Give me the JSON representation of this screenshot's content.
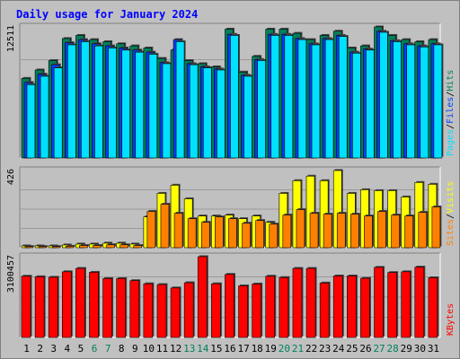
{
  "title": "Daily usage for January 2024",
  "colors": {
    "background": "#c0c0c0",
    "title": "#0000ff",
    "hits": "#00805c",
    "files": "#0040ff",
    "pages": "#00e0ff",
    "visits": "#ffff00",
    "sites": "#ff8000",
    "kbytes": "#ff0000",
    "weekend_label": "#00805c",
    "weekday_label": "#000000"
  },
  "chart_data": {
    "type": "bar",
    "title": "Daily usage for January 2024",
    "categories": [
      "1",
      "2",
      "3",
      "4",
      "5",
      "6",
      "7",
      "8",
      "9",
      "10",
      "11",
      "12",
      "13",
      "14",
      "15",
      "16",
      "17",
      "18",
      "19",
      "20",
      "21",
      "22",
      "23",
      "24",
      "25",
      "26",
      "27",
      "28",
      "29",
      "30",
      "31"
    ],
    "weekend_days": [
      "6",
      "7",
      "13",
      "14",
      "20",
      "21",
      "27",
      "28"
    ],
    "panels": [
      {
        "id": "hits-files-pages",
        "ymax_label": "12511",
        "ymax": 12511,
        "legend": [
          {
            "text": "Pages",
            "color": "#00e0ff"
          },
          {
            "text": "/",
            "color": "#000000"
          },
          {
            "text": "Files",
            "color": "#0040ff"
          },
          {
            "text": "/",
            "color": "#000000"
          },
          {
            "text": "Hits",
            "color": "#00805c"
          }
        ],
        "series": [
          {
            "name": "Hits",
            "color": "#00805c",
            "values": [
              7600,
              8400,
              9300,
              11400,
              11700,
              11300,
              11100,
              10900,
              10700,
              10500,
              9500,
              10300,
              9300,
              9000,
              8700,
              12300,
              8200,
              9700,
              12300,
              12300,
              11900,
              11300,
              11700,
              12100,
              10500,
              10700,
              12511,
              11700,
              11300,
              11100,
              11300
            ]
          },
          {
            "name": "Files",
            "color": "#0040ff",
            "values": [
              7200,
              8000,
              8900,
              11000,
              11300,
              10900,
              10700,
              10500,
              10300,
              10100,
              9100,
              11300,
              9000,
              8700,
              8500,
              11800,
              7900,
              9400,
              11800,
              11800,
              11400,
              10900,
              11400,
              11700,
              10100,
              10400,
              12100,
              11200,
              10900,
              10700,
              10900
            ]
          },
          {
            "name": "Pages",
            "color": "#00e0ff",
            "values": [
              7000,
              7800,
              8600,
              10800,
              11100,
              10700,
              10500,
              10300,
              10100,
              9900,
              9000,
              11100,
              8900,
              8600,
              8400,
              11700,
              7800,
              9300,
              11700,
              11700,
              11300,
              10800,
              11300,
              11600,
              10000,
              10300,
              12000,
              11100,
              10800,
              10600,
              10800
            ]
          }
        ]
      },
      {
        "id": "visits-sites",
        "ymax_label": "426",
        "ymax": 426,
        "legend": [
          {
            "text": "Sites",
            "color": "#ff8000"
          },
          {
            "text": "/",
            "color": "#000000"
          },
          {
            "text": "Visits",
            "color": "#ffff00"
          }
        ],
        "series": [
          {
            "name": "Visits",
            "color": "#ffff00",
            "values": [
              10,
              10,
              10,
              15,
              20,
              20,
              25,
              25,
              20,
              170,
              300,
              345,
              270,
              175,
              175,
              180,
              160,
              175,
              140,
              300,
              370,
              395,
              370,
              426,
              300,
              320,
              315,
              315,
              280,
              360,
              350
            ]
          },
          {
            "name": "Sites",
            "color": "#ff8000",
            "values": [
              6,
              6,
              6,
              8,
              12,
              12,
              16,
              16,
              12,
              200,
              240,
              190,
              160,
              140,
              170,
              160,
              135,
              150,
              130,
              180,
              210,
              190,
              185,
              190,
              185,
              175,
              200,
              180,
              175,
              195,
              225
            ]
          }
        ]
      },
      {
        "id": "kbytes",
        "ymax_label": "3100457",
        "ymax": 3100457,
        "legend": [
          {
            "text": "KBytes",
            "color": "#ff0000"
          }
        ],
        "series": [
          {
            "name": "KBytes",
            "color": "#ff0000",
            "values": [
              2350000,
              2330000,
              2310000,
              2520000,
              2650000,
              2500000,
              2260000,
              2260000,
              2180000,
              2060000,
              2030000,
              1900000,
              2100000,
              3100457,
              2060000,
              2420000,
              1980000,
              2050000,
              2350000,
              2300000,
              2650000,
              2650000,
              2090000,
              2360000,
              2360000,
              2270000,
              2690000,
              2490000,
              2520000,
              2700000,
              2290000
            ]
          }
        ]
      }
    ]
  }
}
